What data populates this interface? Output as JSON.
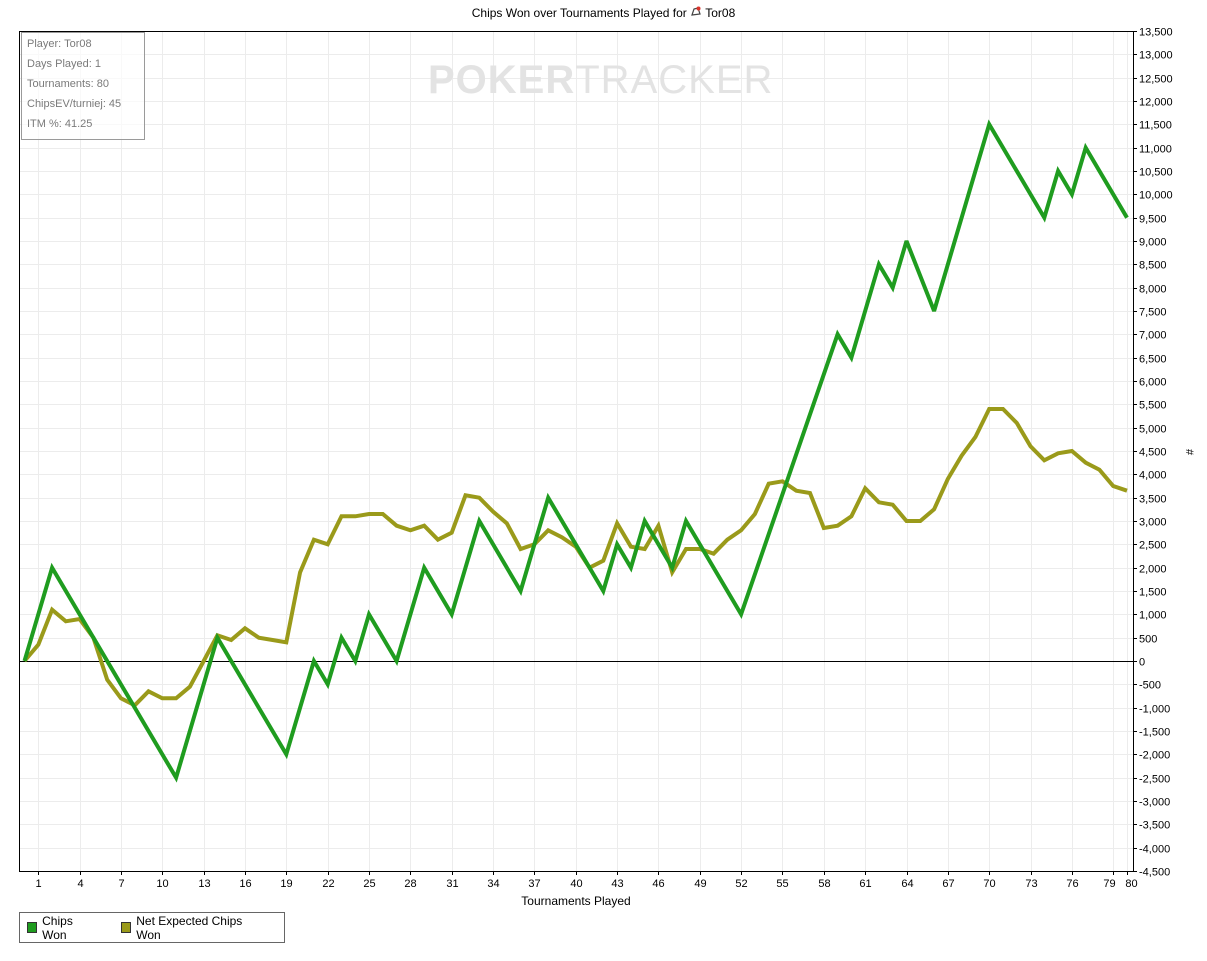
{
  "title": {
    "prefix": "Chips Won over Tournaments Played for",
    "player": "Tor08"
  },
  "stats": {
    "player": "Player: Tor08",
    "days_played": "Days Played: 1",
    "tournaments": "Tournaments: 80",
    "chips_ev": "ChipsEV/turniej: 45",
    "itm": "ITM %: 41.25"
  },
  "watermark": {
    "bold": "POKER",
    "light": "TRACKER"
  },
  "x_axis_title": "Tournaments Played",
  "y_axis_unit": "#",
  "legend": [
    {
      "label": "Chips Won",
      "color": "#1f9c1f"
    },
    {
      "label": "Net Expected Chips Won",
      "color": "#9a9a1a"
    }
  ],
  "chart_data": {
    "type": "line",
    "title": "Chips Won over Tournaments Played for Tor08",
    "xlabel": "Tournaments Played",
    "ylabel": "#",
    "xlim": [
      0,
      81
    ],
    "ylim": [
      -4500,
      13500
    ],
    "x_ticks": [
      1,
      4,
      7,
      10,
      13,
      16,
      19,
      22,
      25,
      28,
      31,
      34,
      37,
      40,
      43,
      46,
      49,
      52,
      55,
      58,
      61,
      64,
      67,
      70,
      73,
      76,
      79,
      80
    ],
    "x_tick_labels": [
      "1",
      "4",
      "7",
      "10",
      "13",
      "16",
      "19",
      "22",
      "25",
      "28",
      "31",
      "34",
      "37",
      "40",
      "43",
      "46",
      "49",
      "52",
      "55",
      "58",
      "61",
      "64",
      "67",
      "70",
      "73",
      "76",
      "79",
      "80"
    ],
    "y_ticks": [
      13500,
      13000,
      12500,
      12000,
      11500,
      11000,
      10500,
      10000,
      9500,
      9000,
      8500,
      8000,
      7500,
      7000,
      6500,
      6000,
      5500,
      5000,
      4500,
      4000,
      3500,
      3000,
      2500,
      2000,
      1500,
      1000,
      500,
      0,
      -500,
      -1000,
      -1500,
      -2000,
      -2500,
      -3000,
      -3500,
      -4000,
      -4500
    ],
    "y_tick_labels": [
      "13,500",
      "13,000",
      "12,500",
      "12,000",
      "11,500",
      "11,000",
      "10,500",
      "10,000",
      "9,500",
      "9,000",
      "8,500",
      "8,000",
      "7,500",
      "7,000",
      "6,500",
      "6,000",
      "5,500",
      "5,000",
      "4,500",
      "4,000",
      "3,500",
      "3,000",
      "2,500",
      "2,000",
      "1,500",
      "1,000",
      "500",
      "0",
      "-500",
      "-1,000",
      "-1,500",
      "-2,000",
      "-2,500",
      "-3,000",
      "-3,500",
      "-4,000",
      "-4,500"
    ],
    "grid": true,
    "legend_position": "bottom-left",
    "series": [
      {
        "name": "Chips Won",
        "color": "#1f9c1f",
        "x": [
          0,
          2,
          5,
          11,
          14,
          19,
          21,
          22,
          23,
          24,
          25,
          27,
          29,
          31,
          33,
          36,
          38,
          42,
          43,
          44,
          45,
          47,
          48,
          52,
          59,
          60,
          62,
          63,
          64,
          66,
          70,
          74,
          75,
          76,
          77,
          80
        ],
        "values": [
          0,
          2000,
          500,
          -2500,
          500,
          -2000,
          0,
          -500,
          500,
          0,
          1000,
          0,
          2000,
          1000,
          3000,
          1500,
          3500,
          1500,
          2500,
          2000,
          3000,
          2000,
          3000,
          1000,
          7000,
          6500,
          8500,
          8000,
          9000,
          7500,
          11500,
          9500,
          10500,
          10000,
          11000,
          9500
        ]
      },
      {
        "name": "Net Expected Chips Won",
        "color": "#9a9a1a",
        "x": [
          0,
          1,
          2,
          3,
          4,
          5,
          6,
          7,
          8,
          9,
          10,
          11,
          12,
          13,
          14,
          15,
          16,
          17,
          18,
          19,
          20,
          21,
          22,
          23,
          24,
          25,
          26,
          27,
          28,
          29,
          30,
          31,
          32,
          33,
          34,
          35,
          36,
          37,
          38,
          39,
          40,
          41,
          42,
          43,
          44,
          45,
          46,
          47,
          48,
          49,
          50,
          51,
          52,
          53,
          54,
          55,
          56,
          57,
          58,
          59,
          60,
          61,
          62,
          63,
          64,
          65,
          66,
          67,
          68,
          69,
          70,
          71,
          72,
          73,
          74,
          75,
          76,
          77,
          78,
          79,
          80
        ],
        "values": [
          0,
          350,
          1100,
          850,
          900,
          500,
          -400,
          -800,
          -950,
          -650,
          -800,
          -800,
          -550,
          0,
          550,
          450,
          700,
          500,
          450,
          400,
          1900,
          2600,
          2500,
          3100,
          3100,
          3150,
          3150,
          2900,
          2800,
          2900,
          2600,
          2750,
          3550,
          3500,
          3200,
          2950,
          2400,
          2500,
          2800,
          2650,
          2450,
          2000,
          2150,
          2950,
          2450,
          2400,
          2900,
          1900,
          2400,
          2400,
          2300,
          2600,
          2800,
          3150,
          3800,
          3850,
          3650,
          3600,
          2850,
          2900,
          3100,
          3700,
          3400,
          3350,
          3000,
          3000,
          3250,
          3900,
          4400,
          4800,
          5400,
          5400,
          5100,
          4600,
          4300,
          4450,
          4500,
          4250,
          4100,
          3750,
          3650
        ]
      }
    ]
  }
}
